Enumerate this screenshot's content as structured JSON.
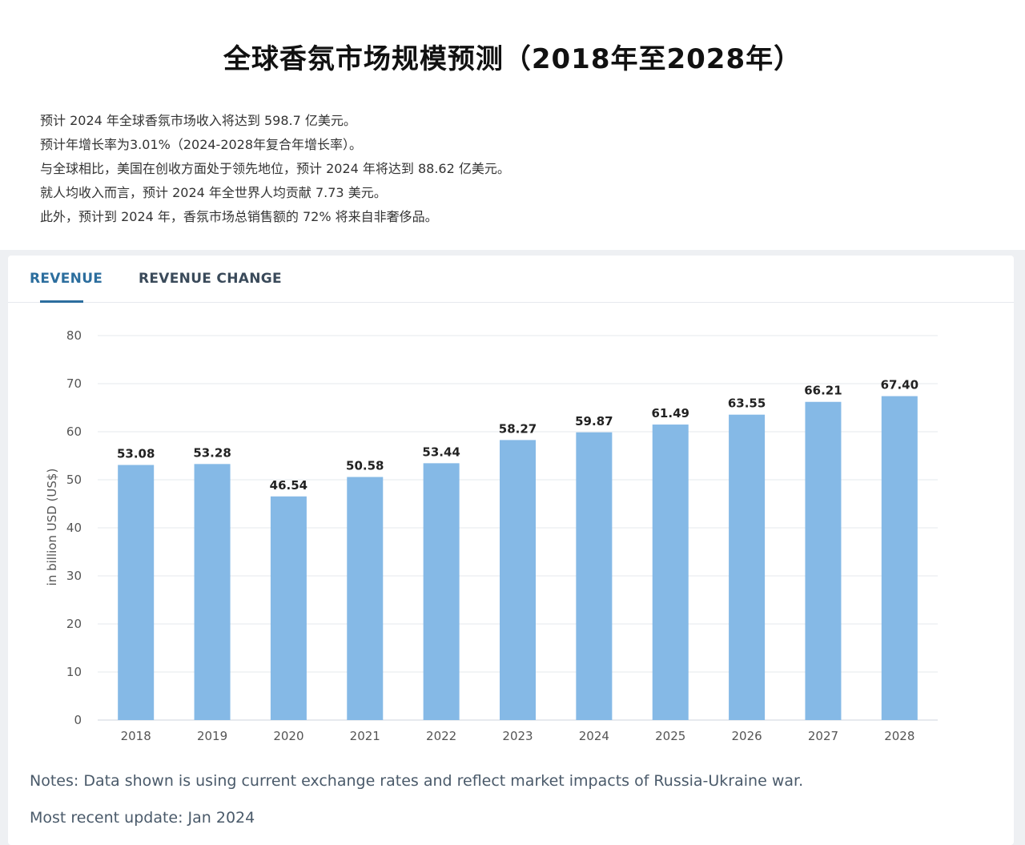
{
  "header": {
    "title": "全球香氛市场规模预测（2018年至2028年）",
    "summary": [
      "预计 2024 年全球香氛市场收入将达到 598.7 亿美元。",
      "预计年增长率为3.01%（2024-2028年复合年增长率）。",
      "与全球相比，美国在创收方面处于领先地位，预计 2024 年将达到 88.62 亿美元。",
      "就人均收入而言，预计 2024 年全世界人均贡献 7.73 美元。",
      "此外，预计到 2024 年，香氛市场总销售额的 72% 将来自非奢侈品。"
    ]
  },
  "tabs": [
    {
      "label": "REVENUE",
      "active": true
    },
    {
      "label": "REVENUE CHANGE",
      "active": false
    }
  ],
  "chart_data": {
    "type": "bar",
    "categories": [
      "2018",
      "2019",
      "2020",
      "2021",
      "2022",
      "2023",
      "2024",
      "2025",
      "2026",
      "2027",
      "2028"
    ],
    "values": [
      53.08,
      53.28,
      46.54,
      50.58,
      53.44,
      58.27,
      59.87,
      61.49,
      63.55,
      66.21,
      67.4
    ],
    "data_labels": [
      "53.08",
      "53.28",
      "46.54",
      "50.58",
      "53.44",
      "58.27",
      "59.87",
      "61.49",
      "63.55",
      "66.21",
      "67.40"
    ],
    "ylabel": "in billion USD (US$)",
    "ylim": [
      0,
      80
    ],
    "yticks": [
      0,
      10,
      20,
      30,
      40,
      50,
      60,
      70,
      80
    ],
    "grid": true,
    "bar_color": "#85b9e6"
  },
  "notes": {
    "note": "Notes: Data shown is using current exchange rates and reflect market impacts of Russia-Ukraine war.",
    "update": "Most recent update: Jan 2024"
  }
}
